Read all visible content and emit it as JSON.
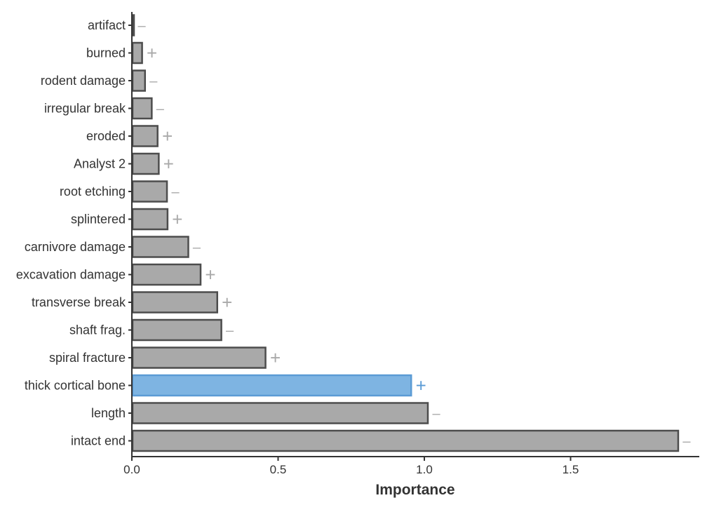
{
  "chart_data": {
    "type": "bar",
    "orientation": "horizontal",
    "title": "",
    "xlabel": "Importance",
    "ylabel": "",
    "xlim": [
      0,
      1.9
    ],
    "xticks": [
      0.0,
      0.5,
      1.0,
      1.5
    ],
    "xtick_labels": [
      "0.0",
      "0.5",
      "1.0",
      "1.5"
    ],
    "grid": false,
    "categories": [
      "artifact",
      "burned",
      "rodent damage",
      "irregular break",
      "eroded",
      "Analyst 2",
      "root etching",
      "splintered",
      "carnivore damage",
      "excavation damage",
      "transverse break",
      "shaft frag.",
      "spiral fracture",
      "thick cortical bone",
      "length",
      "intact end"
    ],
    "values": [
      0.005,
      0.035,
      0.045,
      0.068,
      0.088,
      0.092,
      0.12,
      0.122,
      0.193,
      0.235,
      0.292,
      0.306,
      0.457,
      0.955,
      1.012,
      1.868
    ],
    "signs": [
      "–",
      "+",
      "–",
      "–",
      "+",
      "+",
      "–",
      "+",
      "–",
      "+",
      "+",
      "–",
      "+",
      "+",
      "–",
      "–"
    ],
    "highlighted": [
      "thick cortical bone"
    ],
    "colors": {
      "bar_fill": "#a9a9a9",
      "bar_stroke": "#4d4d4d",
      "highlight_fill": "#7eb4e2",
      "highlight_stroke": "#5b9bd5",
      "sign": "#a9a9a9",
      "highlight_sign": "#5b9bd5",
      "axis": "#333333"
    }
  }
}
